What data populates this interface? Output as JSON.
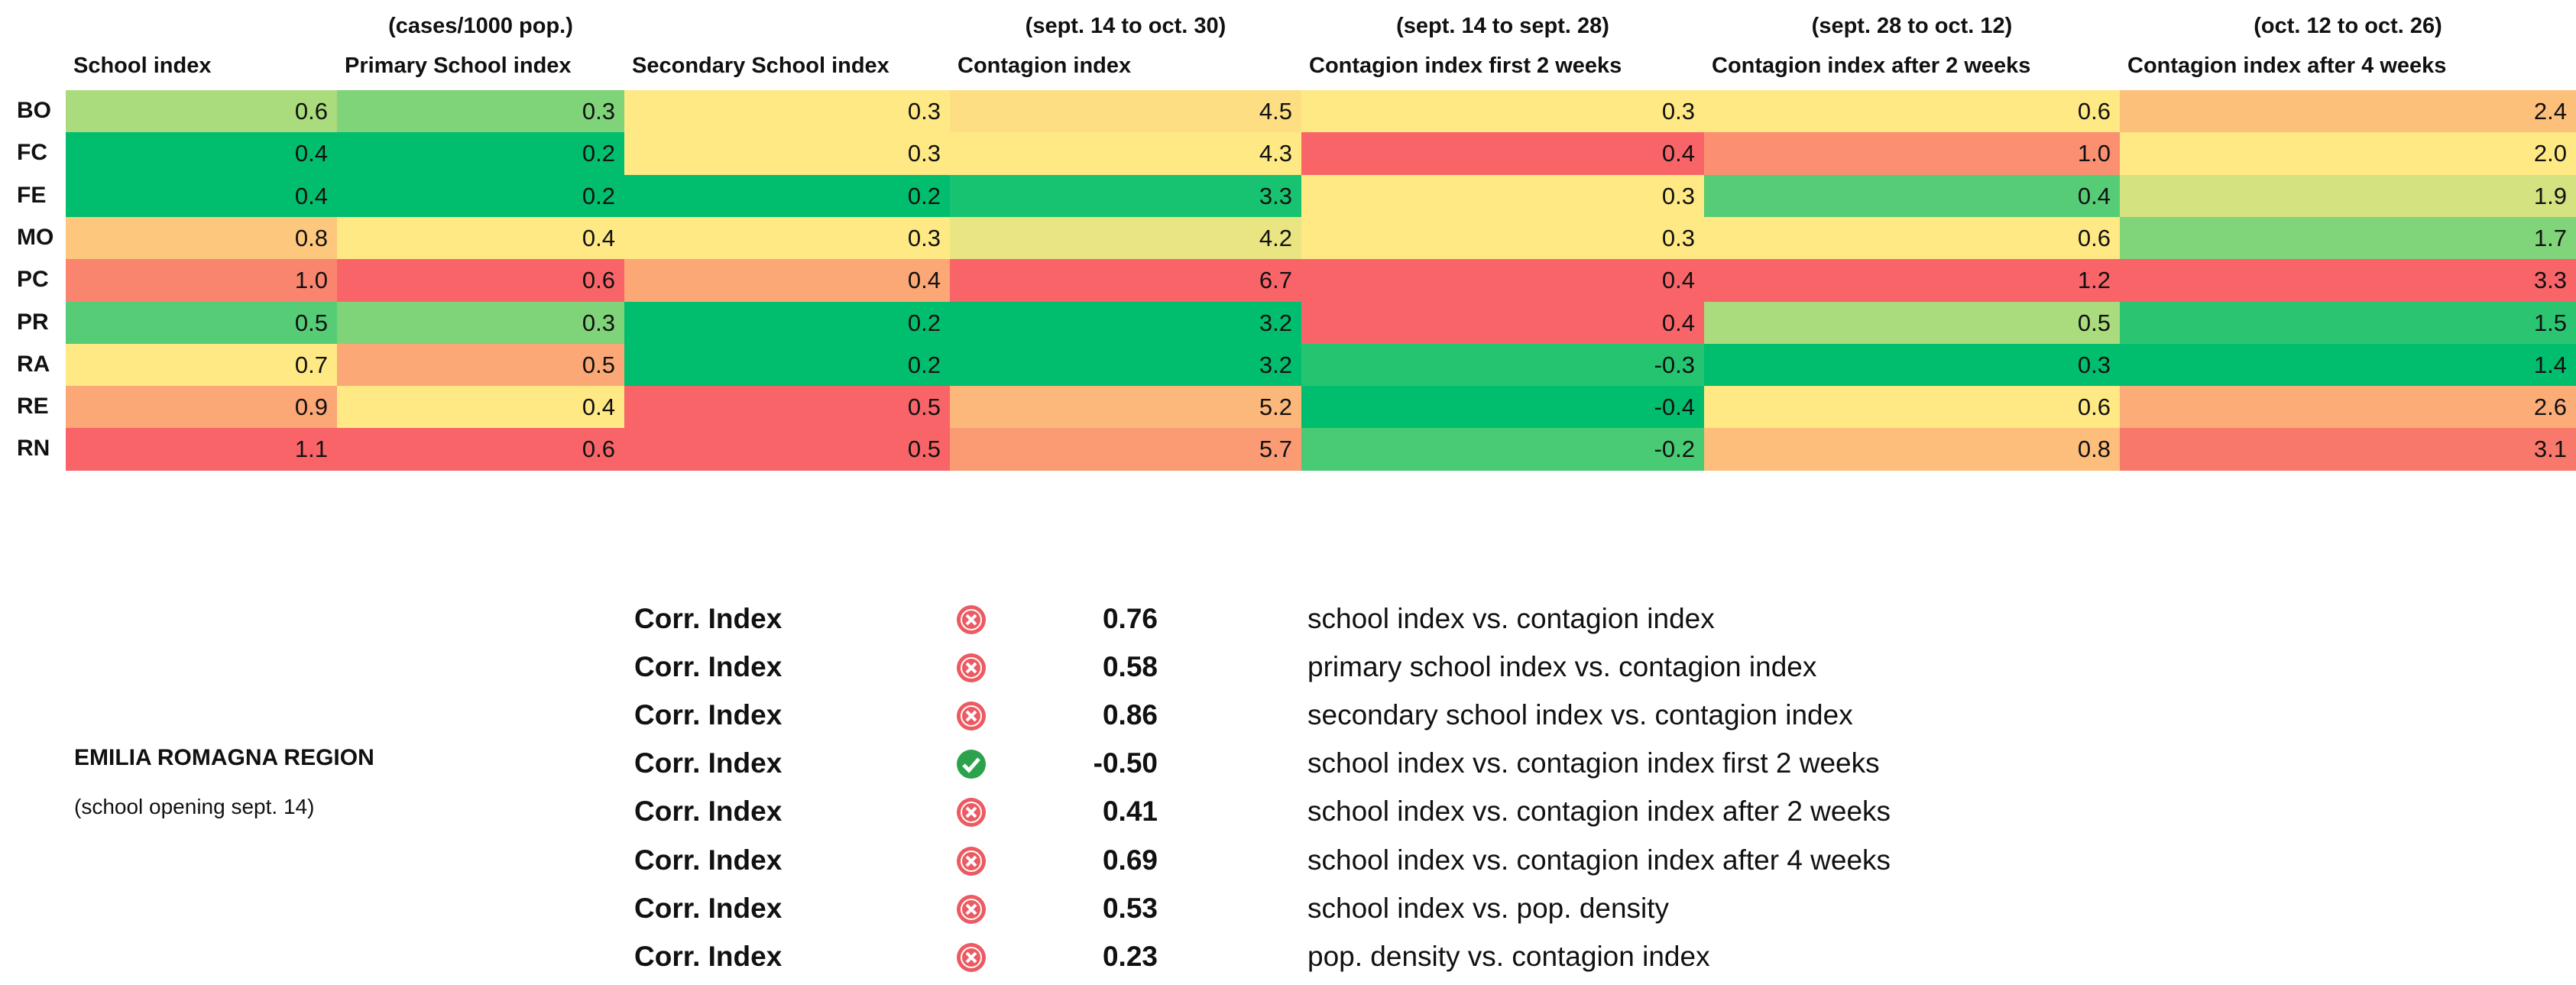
{
  "table": {
    "header_notes": [
      null,
      "(cases/1000 pop.)",
      null,
      "(sept. 14 to oct. 30)",
      "(sept. 14 to sept. 28)",
      "(sept. 28 to oct. 12)",
      "(oct. 12 to oct. 26)"
    ],
    "columns": [
      "School index",
      "Primary School index",
      "Secondary School index",
      "Contagion index",
      "Contagion index first 2 weeks",
      "Contagion index after 2 weeks",
      "Contagion index after 4 weeks"
    ],
    "rows": [
      {
        "label": "BO",
        "cells": [
          "0.6",
          "0.3",
          "0.3",
          "4.5",
          "0.3",
          "0.6",
          "2.4"
        ]
      },
      {
        "label": "FC",
        "cells": [
          "0.4",
          "0.2",
          "0.3",
          "4.3",
          "0.4",
          "1.0",
          "2.0"
        ]
      },
      {
        "label": "FE",
        "cells": [
          "0.4",
          "0.2",
          "0.2",
          "3.3",
          "0.3",
          "0.4",
          "1.9"
        ]
      },
      {
        "label": "MO",
        "cells": [
          "0.8",
          "0.4",
          "0.3",
          "4.2",
          "0.3",
          "0.6",
          "1.7"
        ]
      },
      {
        "label": "PC",
        "cells": [
          "1.0",
          "0.6",
          "0.4",
          "6.7",
          "0.4",
          "1.2",
          "3.3"
        ]
      },
      {
        "label": "PR",
        "cells": [
          "0.5",
          "0.3",
          "0.2",
          "3.2",
          "0.4",
          "0.5",
          "1.5"
        ]
      },
      {
        "label": "RA",
        "cells": [
          "0.7",
          "0.5",
          "0.2",
          "3.2",
          "-0.3",
          "0.3",
          "1.4"
        ]
      },
      {
        "label": "RE",
        "cells": [
          "0.9",
          "0.4",
          "0.5",
          "5.2",
          "-0.4",
          "0.6",
          "2.6"
        ]
      },
      {
        "label": "RN",
        "cells": [
          "1.1",
          "0.6",
          "0.5",
          "5.7",
          "-0.2",
          "0.8",
          "3.1"
        ]
      }
    ]
  },
  "correlations": {
    "region": "EMILIA ROMAGNA REGION",
    "note": "(school opening sept. 14)",
    "rows": [
      {
        "label": "Corr. Index",
        "value": "0.76",
        "description": "school index vs. contagion index"
      },
      {
        "label": "Corr. Index",
        "value": "0.58",
        "description": "primary school index vs. contagion index"
      },
      {
        "label": "Corr. Index",
        "value": "0.86",
        "description": "secondary school index vs. contagion index"
      },
      {
        "label": "Corr. Index",
        "value": "-0.50",
        "description": "school index vs. contagion index first 2 weeks"
      },
      {
        "label": "Corr. Index",
        "value": "0.41",
        "description": "school index vs. contagion index after 2 weeks"
      },
      {
        "label": "Corr. Index",
        "value": "0.69",
        "description": "school index vs. contagion index after 4 weeks"
      },
      {
        "label": "Corr. Index",
        "value": "0.53",
        "description": "school index vs. pop. density"
      },
      {
        "label": "Corr. Index",
        "value": "0.23",
        "description": "pop. density vs. contagion index"
      }
    ]
  }
}
